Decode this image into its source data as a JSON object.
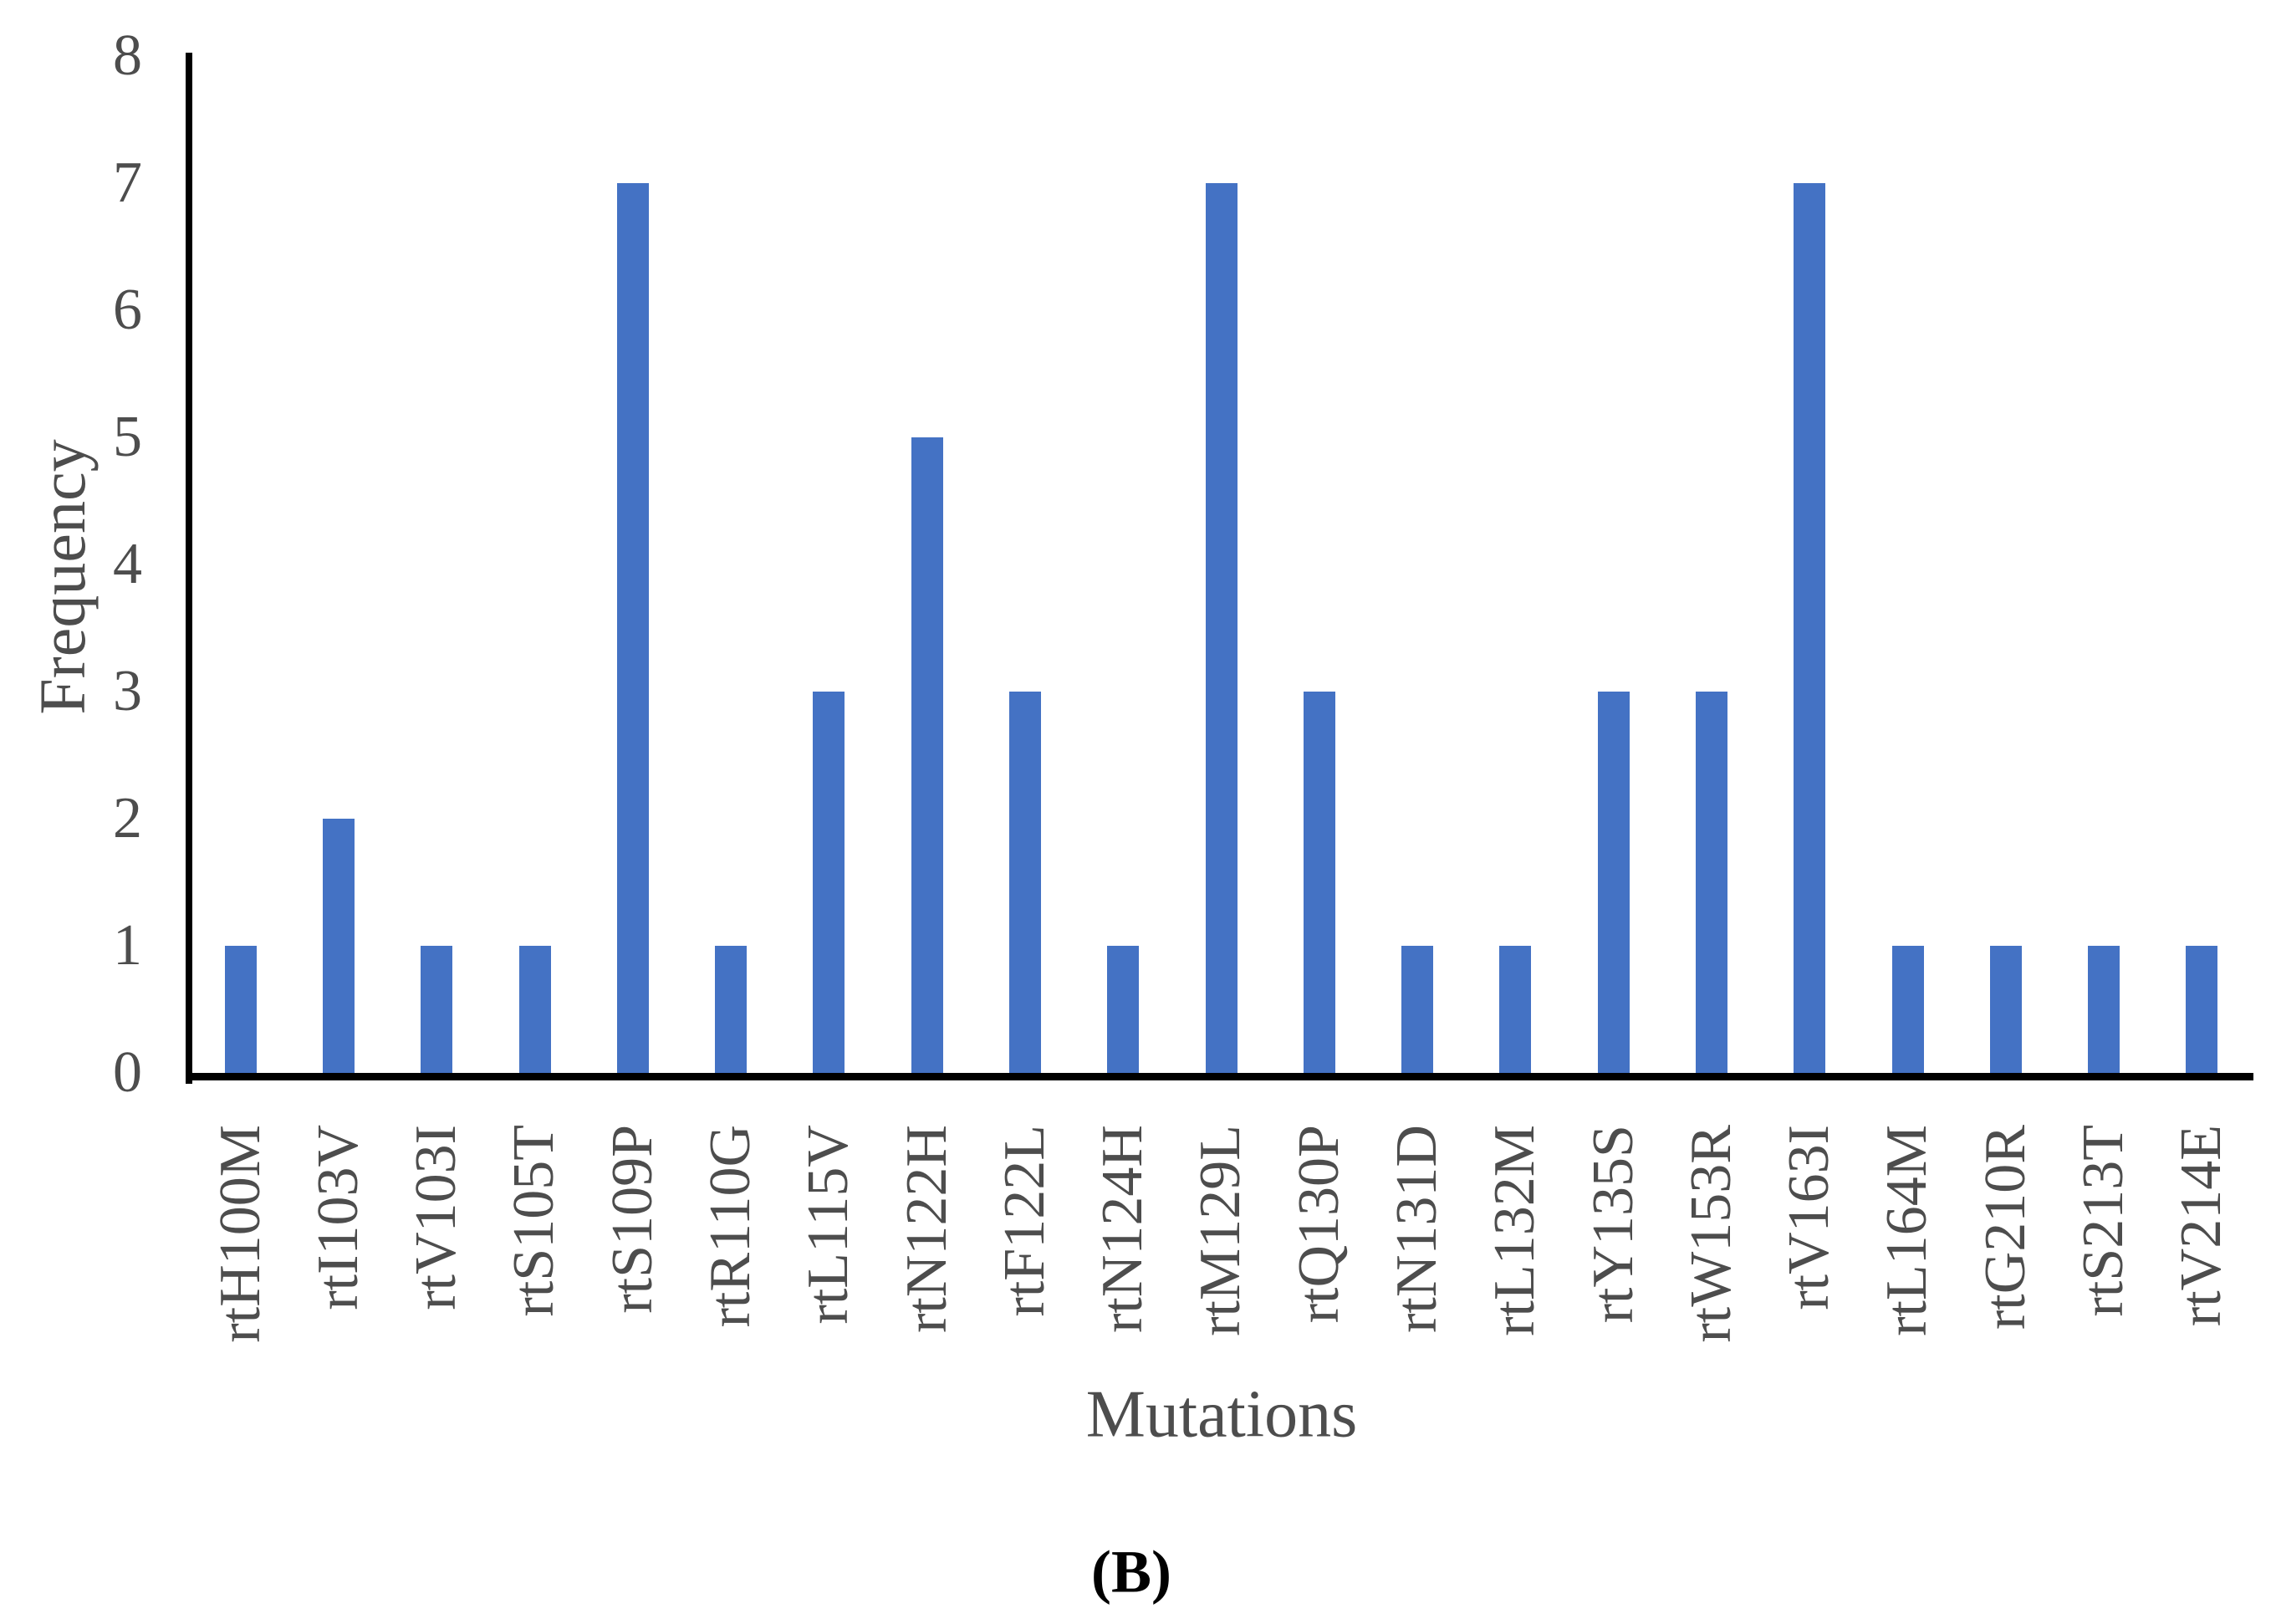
{
  "figure": {
    "panel_label": "(B)"
  },
  "chart_data": {
    "type": "bar",
    "title": "",
    "xlabel": "Mutations",
    "ylabel": "Frequency",
    "categories": [
      "rtH100M",
      "rtI103V",
      "rtV103I",
      "rtS105T",
      "rtS109P",
      "rtR110G",
      "rtL115V",
      "rtN122H",
      "rtF122L",
      "rtN124H",
      "rtM129L",
      "rtQ130P",
      "rtN131D",
      "rtL132M",
      "rtY135S",
      "rtW153R",
      "rtV163I",
      "rtL164M",
      "rtG210R",
      "rtS213T",
      "rtV214E"
    ],
    "values": [
      1,
      2,
      1,
      1,
      7,
      1,
      3,
      5,
      3,
      1,
      7,
      3,
      1,
      1,
      3,
      3,
      7,
      1,
      1,
      1,
      1
    ],
    "ylim": [
      0,
      8
    ],
    "yticks": [
      0,
      1,
      2,
      3,
      4,
      5,
      6,
      7,
      8
    ],
    "grid": false,
    "legend": null,
    "bar_color": "#4472C4",
    "axis_line_color": "#000000",
    "tick_label_color": "#4d4d4d",
    "axis_title_color": "#4d4d4d"
  }
}
